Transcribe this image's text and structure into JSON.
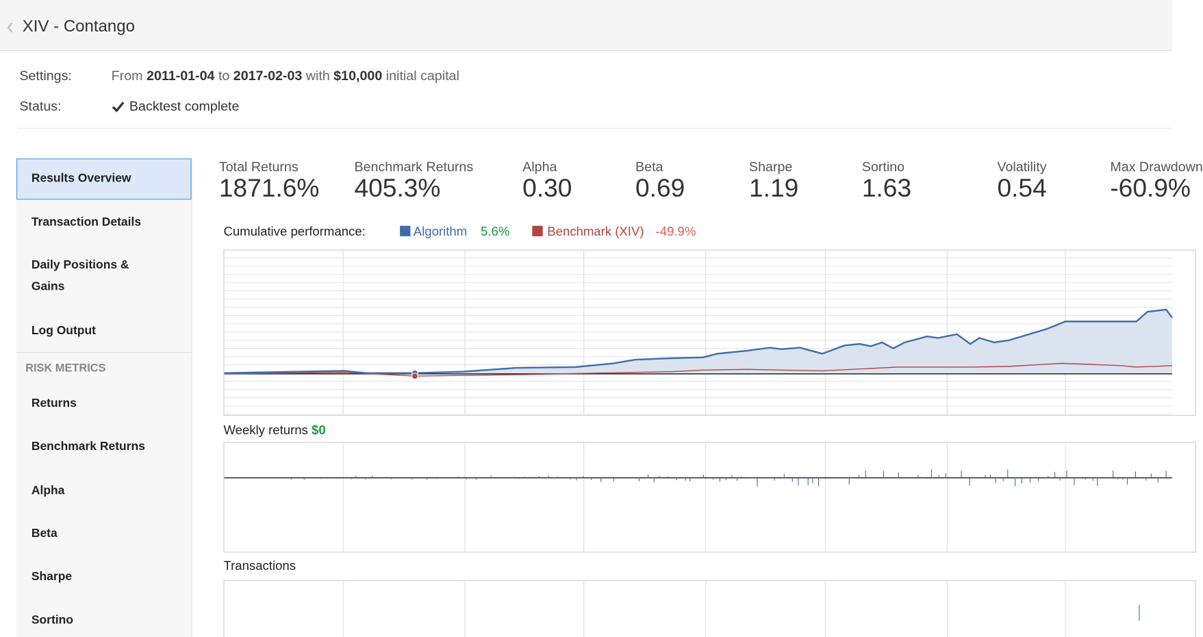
{
  "header": {
    "title": "XIV - Contango"
  },
  "settings": {
    "label": "Settings:",
    "from_word": "From",
    "start": "2011-01-04",
    "to_word": "to",
    "end": "2017-02-03",
    "with_word": "with",
    "capital": "$10,000",
    "suffix": "initial capital"
  },
  "status": {
    "label": "Status:",
    "text": "Backtest complete"
  },
  "sidebar": {
    "items": [
      "Results Overview",
      "Transaction Details",
      "Daily Positions & Gains",
      "Log Output"
    ],
    "section": "RISK METRICS",
    "risk_items": [
      "Returns",
      "Benchmark Returns",
      "Alpha",
      "Beta",
      "Sharpe",
      "Sortino"
    ]
  },
  "metrics": [
    {
      "label": "Total Returns",
      "value": "1871.6%"
    },
    {
      "label": "Benchmark Returns",
      "value": "405.3%"
    },
    {
      "label": "Alpha",
      "value": "0.30"
    },
    {
      "label": "Beta",
      "value": "0.69"
    },
    {
      "label": "Sharpe",
      "value": "1.19"
    },
    {
      "label": "Sortino",
      "value": "1.63"
    },
    {
      "label": "Volatility",
      "value": "0.54"
    },
    {
      "label": "Max Drawdown",
      "value": "-60.9%"
    }
  ],
  "cumulative": {
    "label": "Cumulative performance:",
    "series": [
      {
        "name": "Algorithm",
        "value": "5.6%"
      },
      {
        "name": "Benchmark (XIV)",
        "value": "-49.9%"
      }
    ]
  },
  "weekly": {
    "label": "Weekly returns",
    "value": "$0"
  },
  "transactions": {
    "label": "Transactions"
  }
}
